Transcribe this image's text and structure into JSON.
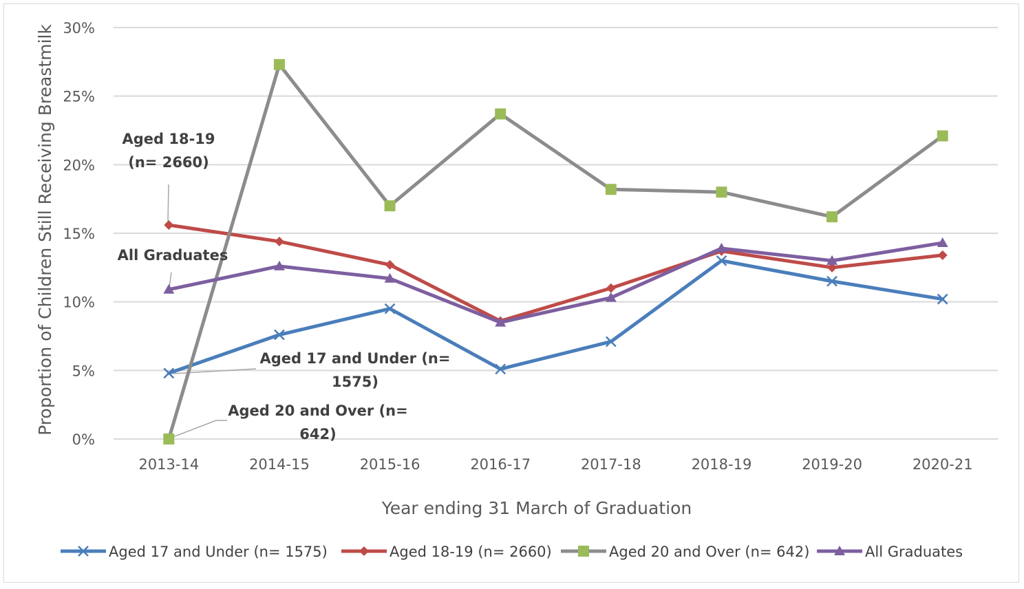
{
  "chart_data": {
    "type": "line",
    "title": "",
    "xlabel": "Year ending 31 March of Graduation",
    "ylabel": "Proportion of Children Still Receiving Breastmilk",
    "categories": [
      "2013-14",
      "2014-15",
      "2015-16",
      "2016-17",
      "2017-18",
      "2018-19",
      "2019-20",
      "2020-21"
    ],
    "ylim": [
      0,
      30
    ],
    "yticks": [
      "0%",
      "5%",
      "10%",
      "15%",
      "20%",
      "25%",
      "30%"
    ],
    "grid": true,
    "legend_position": "bottom",
    "series": [
      {
        "name": "Aged 17 and Under (n= 1575)",
        "color": "#4a7ebb",
        "marker": "x",
        "values": [
          4.8,
          7.6,
          9.5,
          5.1,
          7.1,
          13.0,
          11.5,
          10.2
        ]
      },
      {
        "name": "Aged 18-19 (n= 2660)",
        "color": "#be4b48",
        "marker": "diamond",
        "values": [
          15.6,
          14.4,
          12.7,
          8.6,
          11.0,
          13.7,
          12.5,
          13.4
        ]
      },
      {
        "name": "Aged 20 and Over (n= 642)",
        "color": "#8c8c8c",
        "marker_color": "#9bbb59",
        "marker": "square",
        "values": [
          0.0,
          27.3,
          17.0,
          23.7,
          18.2,
          18.0,
          16.2,
          22.1
        ]
      },
      {
        "name": "All Graduates",
        "color": "#7d5fa0",
        "marker": "triangle",
        "values": [
          10.9,
          12.6,
          11.7,
          8.5,
          10.3,
          13.9,
          13.0,
          14.3
        ]
      }
    ],
    "annotations": [
      {
        "lines": [
          "Aged 18-19",
          "(n= 2660)"
        ],
        "series": 1,
        "point": 0
      },
      {
        "lines": [
          "All Graduates"
        ],
        "series": 3,
        "point": 0
      },
      {
        "lines": [
          "Aged 17 and Under (n=",
          "1575)"
        ],
        "series": 0,
        "point": 0
      },
      {
        "lines": [
          "Aged 20 and Over (n=",
          "642)"
        ],
        "series": 2,
        "point": 0
      }
    ]
  }
}
